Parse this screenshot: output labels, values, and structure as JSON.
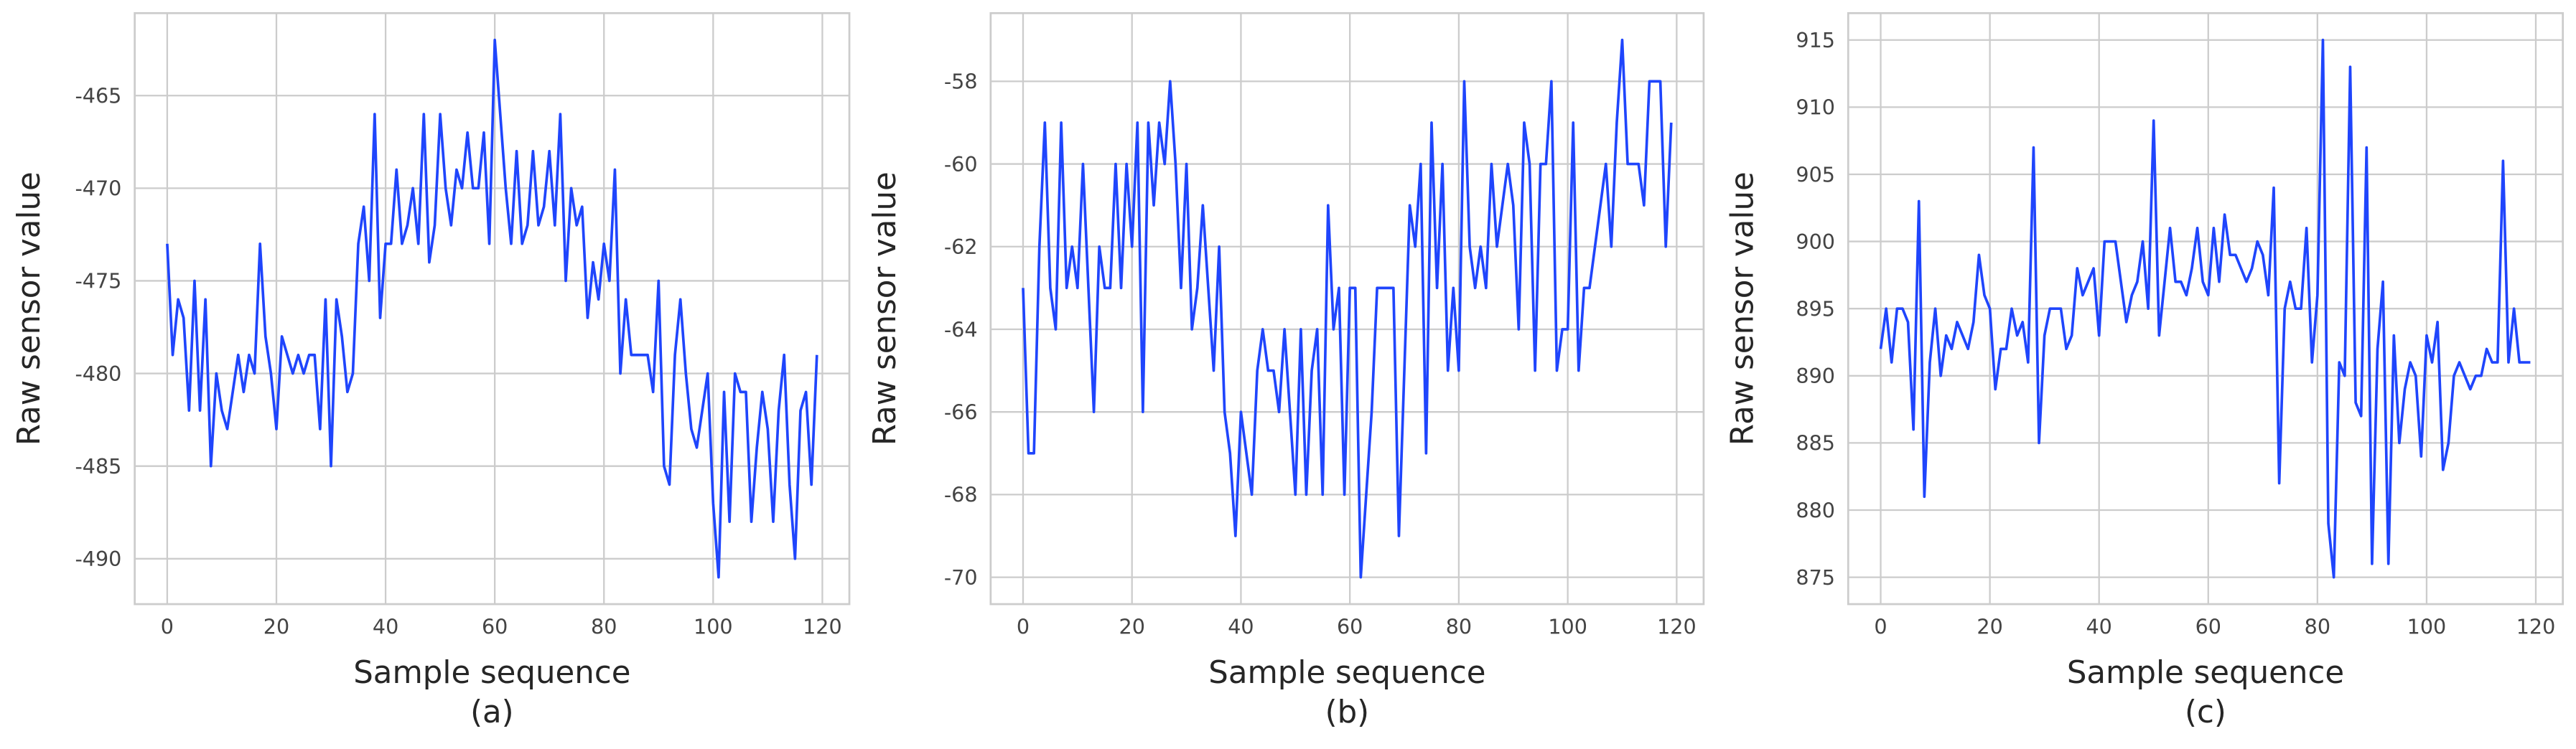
{
  "chart_data": [
    {
      "type": "line",
      "caption": "(a)",
      "xlabel": "Sample sequence",
      "ylabel": "Raw sensor value",
      "color": "#1f45fc",
      "grid": true,
      "xlim": [
        -5.95,
        124.95
      ],
      "ylim": [
        -492.45,
        -460.55
      ],
      "xticks": [
        0,
        20,
        40,
        60,
        80,
        100,
        120
      ],
      "yticks": [
        -490,
        -485,
        -480,
        -475,
        -470,
        -465
      ],
      "x": [
        0,
        1,
        2,
        3,
        4,
        5,
        6,
        7,
        8,
        9,
        10,
        11,
        12,
        13,
        14,
        15,
        16,
        17,
        18,
        19,
        20,
        21,
        22,
        23,
        24,
        25,
        26,
        27,
        28,
        29,
        30,
        31,
        32,
        33,
        34,
        35,
        36,
        37,
        38,
        39,
        40,
        41,
        42,
        43,
        44,
        45,
        46,
        47,
        48,
        49,
        50,
        51,
        52,
        53,
        54,
        55,
        56,
        57,
        58,
        59,
        60,
        61,
        62,
        63,
        64,
        65,
        66,
        67,
        68,
        69,
        70,
        71,
        72,
        73,
        74,
        75,
        76,
        77,
        78,
        79,
        80,
        81,
        82,
        83,
        84,
        85,
        86,
        87,
        88,
        89,
        90,
        91,
        92,
        93,
        94,
        95,
        96,
        97,
        98,
        99,
        100,
        101,
        102,
        103,
        104,
        105,
        106,
        107,
        108,
        109,
        110,
        111,
        112,
        113,
        114,
        115,
        116,
        117,
        118,
        119
      ],
      "values": [
        -473,
        -479,
        -476,
        -477,
        -482,
        -475,
        -482,
        -476,
        -485,
        -480,
        -482,
        -483,
        -481,
        -479,
        -481,
        -479,
        -480,
        -473,
        -478,
        -480,
        -483,
        -478,
        -479,
        -480,
        -479,
        -480,
        -479,
        -479,
        -483,
        -476,
        -485,
        -476,
        -478,
        -481,
        -480,
        -473,
        -471,
        -475,
        -466,
        -477,
        -473,
        -473,
        -469,
        -473,
        -472,
        -470,
        -473,
        -466,
        -474,
        -472,
        -466,
        -470,
        -472,
        -469,
        -470,
        -467,
        -470,
        -470,
        -467,
        -473,
        -462,
        -466,
        -470,
        -473,
        -468,
        -473,
        -472,
        -468,
        -472,
        -471,
        -468,
        -472,
        -466,
        -475,
        -470,
        -472,
        -471,
        -477,
        -474,
        -476,
        -473,
        -475,
        -469,
        -480,
        -476,
        -479,
        -479,
        -479,
        -479,
        -481,
        -475,
        -485,
        -486,
        -479,
        -476,
        -480,
        -483,
        -484,
        -482,
        -480,
        -487,
        -491,
        -481,
        -488,
        -480,
        -481,
        -481,
        -488,
        -484,
        -481,
        -483,
        -488,
        -482,
        -479,
        -486,
        -490,
        -482,
        -481,
        -486,
        -479
      ]
    },
    {
      "type": "line",
      "caption": "(b)",
      "xlabel": "Sample sequence",
      "ylabel": "Raw sensor value",
      "color": "#1f45fc",
      "grid": true,
      "xlim": [
        -5.95,
        124.95
      ],
      "ylim": [
        -70.65,
        -56.35
      ],
      "xticks": [
        0,
        20,
        40,
        60,
        80,
        100,
        120
      ],
      "yticks": [
        -70,
        -68,
        -66,
        -64,
        -62,
        -60,
        -58
      ],
      "x": [
        0,
        1,
        2,
        3,
        4,
        5,
        6,
        7,
        8,
        9,
        10,
        11,
        12,
        13,
        14,
        15,
        16,
        17,
        18,
        19,
        20,
        21,
        22,
        23,
        24,
        25,
        26,
        27,
        28,
        29,
        30,
        31,
        32,
        33,
        34,
        35,
        36,
        37,
        38,
        39,
        40,
        41,
        42,
        43,
        44,
        45,
        46,
        47,
        48,
        49,
        50,
        51,
        52,
        53,
        54,
        55,
        56,
        57,
        58,
        59,
        60,
        61,
        62,
        63,
        64,
        65,
        66,
        67,
        68,
        69,
        70,
        71,
        72,
        73,
        74,
        75,
        76,
        77,
        78,
        79,
        80,
        81,
        82,
        83,
        84,
        85,
        86,
        87,
        88,
        89,
        90,
        91,
        92,
        93,
        94,
        95,
        96,
        97,
        98,
        99,
        100,
        101,
        102,
        103,
        104,
        105,
        106,
        107,
        108,
        109,
        110,
        111,
        112,
        113,
        114,
        115,
        116,
        117,
        118,
        119
      ],
      "values": [
        -63,
        -67,
        -67,
        -62,
        -59,
        -63,
        -64,
        -59,
        -63,
        -62,
        -63,
        -60,
        -63,
        -66,
        -62,
        -63,
        -63,
        -60,
        -63,
        -60,
        -62,
        -59,
        -66,
        -59,
        -61,
        -59,
        -60,
        -58,
        -60,
        -63,
        -60,
        -64,
        -63,
        -61,
        -63,
        -65,
        -62,
        -66,
        -67,
        -69,
        -66,
        -67,
        -68,
        -65,
        -64,
        -65,
        -65,
        -66,
        -64,
        -66,
        -68,
        -64,
        -68,
        -65,
        -64,
        -68,
        -61,
        -64,
        -63,
        -68,
        -63,
        -63,
        -70,
        -68,
        -66,
        -63,
        -63,
        -63,
        -63,
        -69,
        -65,
        -61,
        -62,
        -60,
        -67,
        -59,
        -63,
        -60,
        -65,
        -63,
        -65,
        -58,
        -62,
        -63,
        -62,
        -63,
        -60,
        -62,
        -61,
        -60,
        -61,
        -64,
        -59,
        -60,
        -65,
        -60,
        -60,
        -58,
        -65,
        -64,
        -64,
        -59,
        -65,
        -63,
        -63,
        -62,
        -61,
        -60,
        -62,
        -59,
        -57,
        -60,
        -60,
        -60,
        -61,
        -58,
        -58,
        -58,
        -62,
        -59
      ]
    },
    {
      "type": "line",
      "caption": "(c)",
      "xlabel": "Sample sequence",
      "ylabel": "Raw sensor value",
      "color": "#1f45fc",
      "grid": true,
      "xlim": [
        -5.95,
        124.95
      ],
      "ylim": [
        873,
        917
      ],
      "xticks": [
        0,
        20,
        40,
        60,
        80,
        100,
        120
      ],
      "yticks": [
        875,
        880,
        885,
        890,
        895,
        900,
        905,
        910,
        915
      ],
      "x": [
        0,
        1,
        2,
        3,
        4,
        5,
        6,
        7,
        8,
        9,
        10,
        11,
        12,
        13,
        14,
        15,
        16,
        17,
        18,
        19,
        20,
        21,
        22,
        23,
        24,
        25,
        26,
        27,
        28,
        29,
        30,
        31,
        32,
        33,
        34,
        35,
        36,
        37,
        38,
        39,
        40,
        41,
        42,
        43,
        44,
        45,
        46,
        47,
        48,
        49,
        50,
        51,
        52,
        53,
        54,
        55,
        56,
        57,
        58,
        59,
        60,
        61,
        62,
        63,
        64,
        65,
        66,
        67,
        68,
        69,
        70,
        71,
        72,
        73,
        74,
        75,
        76,
        77,
        78,
        79,
        80,
        81,
        82,
        83,
        84,
        85,
        86,
        87,
        88,
        89,
        90,
        91,
        92,
        93,
        94,
        95,
        96,
        97,
        98,
        99,
        100,
        101,
        102,
        103,
        104,
        105,
        106,
        107,
        108,
        109,
        110,
        111,
        112,
        113,
        114,
        115,
        116,
        117,
        118,
        119
      ],
      "values": [
        892,
        895,
        891,
        895,
        895,
        894,
        886,
        903,
        881,
        891,
        895,
        890,
        893,
        892,
        894,
        893,
        892,
        894,
        899,
        896,
        895,
        889,
        892,
        892,
        895,
        893,
        894,
        891,
        907,
        885,
        893,
        895,
        895,
        895,
        892,
        893,
        898,
        896,
        897,
        898,
        893,
        900,
        900,
        900,
        897,
        894,
        896,
        897,
        900,
        895,
        909,
        893,
        897,
        901,
        897,
        897,
        896,
        898,
        901,
        897,
        896,
        901,
        897,
        902,
        899,
        899,
        898,
        897,
        898,
        900,
        899,
        896,
        904,
        882,
        895,
        897,
        895,
        895,
        901,
        891,
        896,
        915,
        879,
        875,
        891,
        890,
        913,
        888,
        887,
        907,
        876,
        892,
        897,
        876,
        893,
        885,
        889,
        891,
        890,
        884,
        893,
        891,
        894,
        883,
        885,
        890,
        891,
        890,
        889,
        890,
        890,
        892,
        891,
        891,
        906,
        891,
        895,
        891,
        891,
        891
      ]
    }
  ]
}
